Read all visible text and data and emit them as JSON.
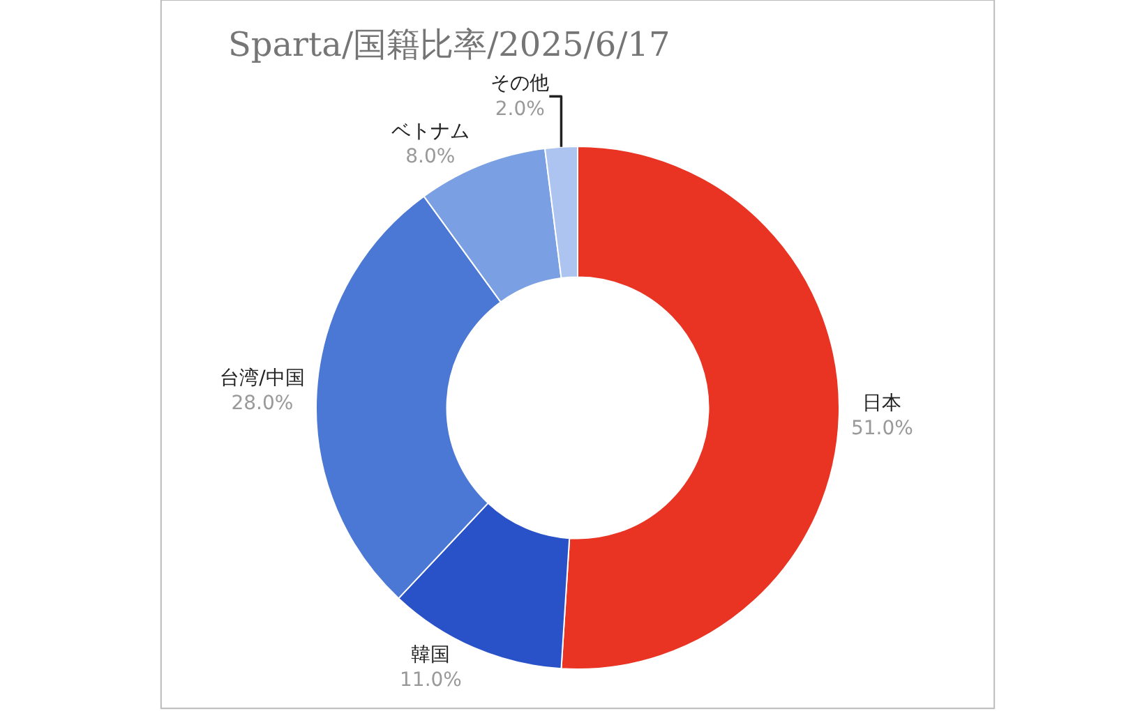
{
  "chart_data": {
    "type": "donut",
    "title": "Sparta/国籍比率/2025/6/17",
    "categories": [
      "日本",
      "韓国",
      "台湾/中国",
      "ベトナム",
      "その他"
    ],
    "values": [
      51,
      11,
      28,
      8,
      2
    ],
    "value_labels": [
      "51.0%",
      "11.0%",
      "28.0%",
      "8.0%",
      "2.0%"
    ],
    "colors": [
      "#e93323",
      "#2952c8",
      "#4a78d4",
      "#7b9fe3",
      "#adc4f0"
    ],
    "legend": false
  }
}
